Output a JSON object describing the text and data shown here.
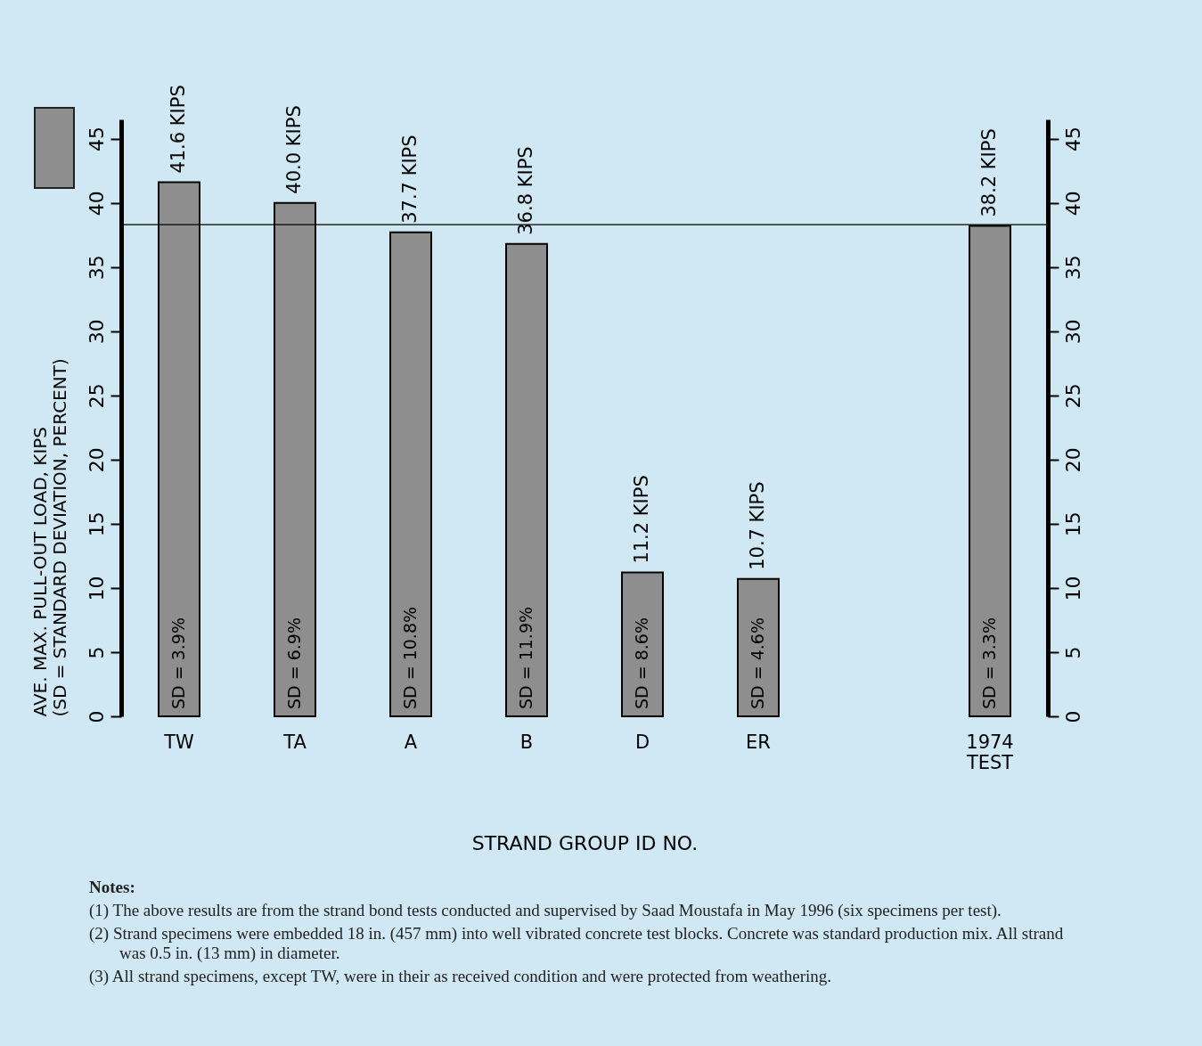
{
  "chart_data": {
    "type": "bar",
    "xlabel": "STRAND GROUP ID NO.",
    "ylabel": "AVE. MAX. PULL-OUT LOAD, KIPS",
    "legend_title": "(SD = STANDARD DEVIATION, PERCENT)",
    "categories": [
      "TW",
      "TA",
      "A",
      "B",
      "D",
      "ER",
      null,
      "1974 TEST"
    ],
    "values": [
      41.6,
      40.0,
      37.7,
      36.8,
      11.2,
      10.7,
      null,
      38.2
    ],
    "value_labels": [
      "41.6 KIPS",
      "40.0 KIPS",
      "37.7 KIPS",
      "36.8 KIPS",
      "11.2 KIPS",
      "10.7 KIPS",
      null,
      "38.2 KIPS"
    ],
    "color": "#8e8e8e",
    "ylim": [
      0,
      46.5
    ],
    "yticks": [
      0,
      5,
      10,
      15,
      20,
      25,
      30,
      35,
      40,
      45
    ],
    "y2lim": [
      0,
      46.5
    ],
    "y2ticks": [
      0,
      5,
      10,
      15,
      20,
      25,
      30,
      35,
      40,
      45
    ],
    "ref_lines": [
      {
        "axis": "y",
        "value": 38.3
      }
    ],
    "grid": false,
    "annotations": [
      "SD = 3.9%",
      "SD = 6.9%",
      "SD = 10.8%",
      "SD = 11.9%",
      "SD = 8.6%",
      "SD = 4.6%",
      "SD = 3.3%",
      "Notes:",
      "(1) The above results are from the strand bond tests conducted and supervised by Saad Moustafa in May 1996 (six specimens per test).",
      "(2) Strand specimens were embedded 18 in. (457 mm) into well vibrated concrete test blocks. Concrete was standard production mix. All strand was 0.5 in. (13 mm) in diameter.",
      "(3) All strand specimens, except TW, were in their as received condition and were protected from weathering."
    ]
  }
}
